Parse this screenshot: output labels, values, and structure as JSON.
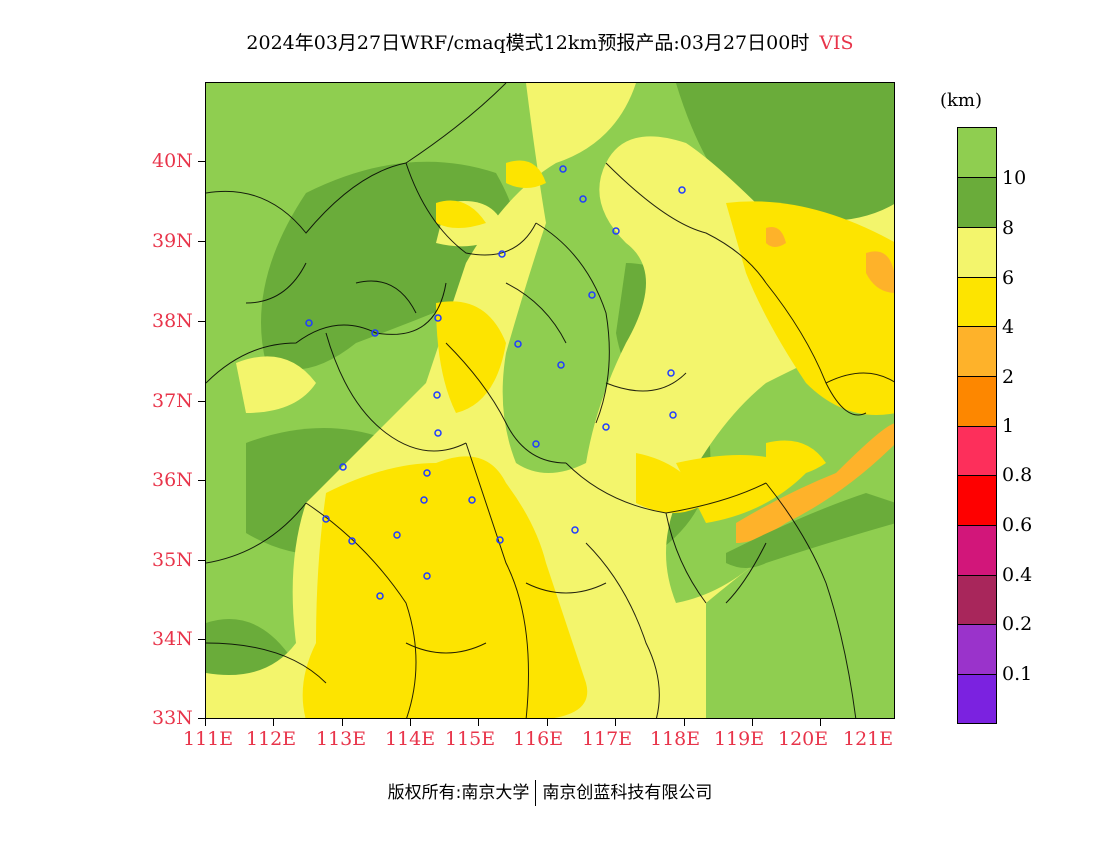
{
  "title": {
    "main": "2024年03月27日WRF/cmaq模式12km预报产品:03月27日00时",
    "variable": "VIS"
  },
  "axes": {
    "x_labels": [
      "111E",
      "112E",
      "113E",
      "114E",
      "115E",
      "116E",
      "117E",
      "118E",
      "119E",
      "120E",
      "121E"
    ],
    "y_labels": [
      "33N",
      "34N",
      "35N",
      "36N",
      "37N",
      "38N",
      "39N",
      "40N"
    ]
  },
  "legend": {
    "unit": "(km)",
    "labels": [
      "10",
      "8",
      "6",
      "4",
      "2",
      "1",
      "0.8",
      "0.6",
      "0.4",
      "0.2",
      "0.1"
    ],
    "colors": [
      "#8fce50",
      "#6aac3a",
      "#f3f56c",
      "#fde400",
      "#feb22a",
      "#fd8700",
      "#fd2f5b",
      "#fe0000",
      "#d2167a",
      "#a8265b",
      "#9a33cb",
      "#7b22e0"
    ]
  },
  "copyright": {
    "left": "版权所有:南京大学",
    "right": "南京创蓝科技有限公司"
  }
}
